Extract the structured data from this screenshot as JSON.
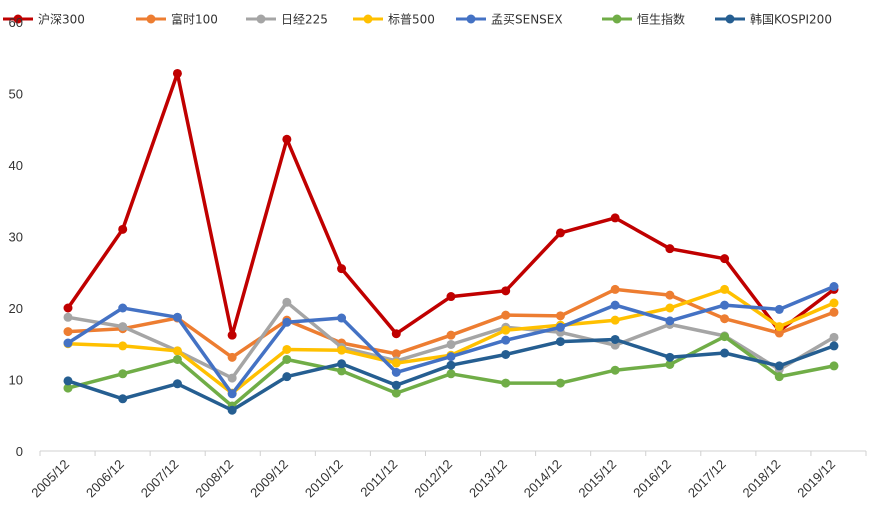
{
  "chart_data": {
    "type": "line",
    "title": "",
    "xlabel": "",
    "ylabel": "",
    "ylim": [
      0,
      60
    ],
    "yticks": [
      0,
      10,
      20,
      30,
      40,
      50,
      60
    ],
    "grid": false,
    "legend_position": "top",
    "categories": [
      "2005/12",
      "2006/12",
      "2007/12",
      "2008/12",
      "2009/12",
      "2010/12",
      "2011/12",
      "2012/12",
      "2013/12",
      "2014/12",
      "2015/12",
      "2016/12",
      "2017/12",
      "2018/12",
      "2019/12"
    ],
    "series": [
      {
        "name": "沪深300",
        "color": "#C00000",
        "values": [
          20.0,
          31.0,
          52.8,
          16.2,
          43.6,
          25.5,
          16.4,
          21.6,
          22.4,
          30.5,
          32.6,
          28.3,
          26.9,
          16.8,
          22.6
        ]
      },
      {
        "name": "富时100",
        "color": "#ED7D31",
        "values": [
          16.7,
          17.1,
          18.6,
          13.1,
          18.3,
          15.1,
          13.6,
          16.2,
          19.0,
          18.9,
          22.6,
          21.8,
          18.5,
          16.5,
          19.4
        ]
      },
      {
        "name": "日经225",
        "color": "#A5A5A5",
        "values": [
          18.7,
          17.4,
          14.0,
          10.2,
          20.8,
          14.5,
          12.6,
          14.9,
          17.3,
          16.6,
          14.8,
          17.7,
          16.1,
          11.4,
          15.9
        ]
      },
      {
        "name": "标普500",
        "color": "#FFC000",
        "values": [
          15.0,
          14.7,
          14.0,
          8.1,
          14.2,
          14.1,
          12.3,
          13.4,
          16.9,
          17.6,
          18.3,
          20.0,
          22.6,
          17.4,
          20.7
        ]
      },
      {
        "name": "孟买SENSEX",
        "color": "#4472C4",
        "values": [
          15.1,
          20.0,
          18.7,
          8.0,
          18.0,
          18.6,
          11.0,
          13.2,
          15.5,
          17.3,
          20.4,
          18.2,
          20.4,
          19.8,
          23.0
        ]
      },
      {
        "name": "恒生指数",
        "color": "#70AD47",
        "values": [
          8.8,
          10.8,
          12.8,
          6.3,
          12.8,
          11.2,
          8.1,
          10.8,
          9.5,
          9.5,
          11.3,
          12.1,
          16.0,
          10.4,
          11.9
        ]
      },
      {
        "name": "韩国KOSPI200",
        "color": "#255E91",
        "values": [
          9.8,
          7.3,
          9.4,
          5.7,
          10.4,
          12.2,
          9.2,
          12.0,
          13.5,
          15.3,
          15.6,
          13.1,
          13.7,
          11.9,
          14.7
        ]
      }
    ]
  }
}
